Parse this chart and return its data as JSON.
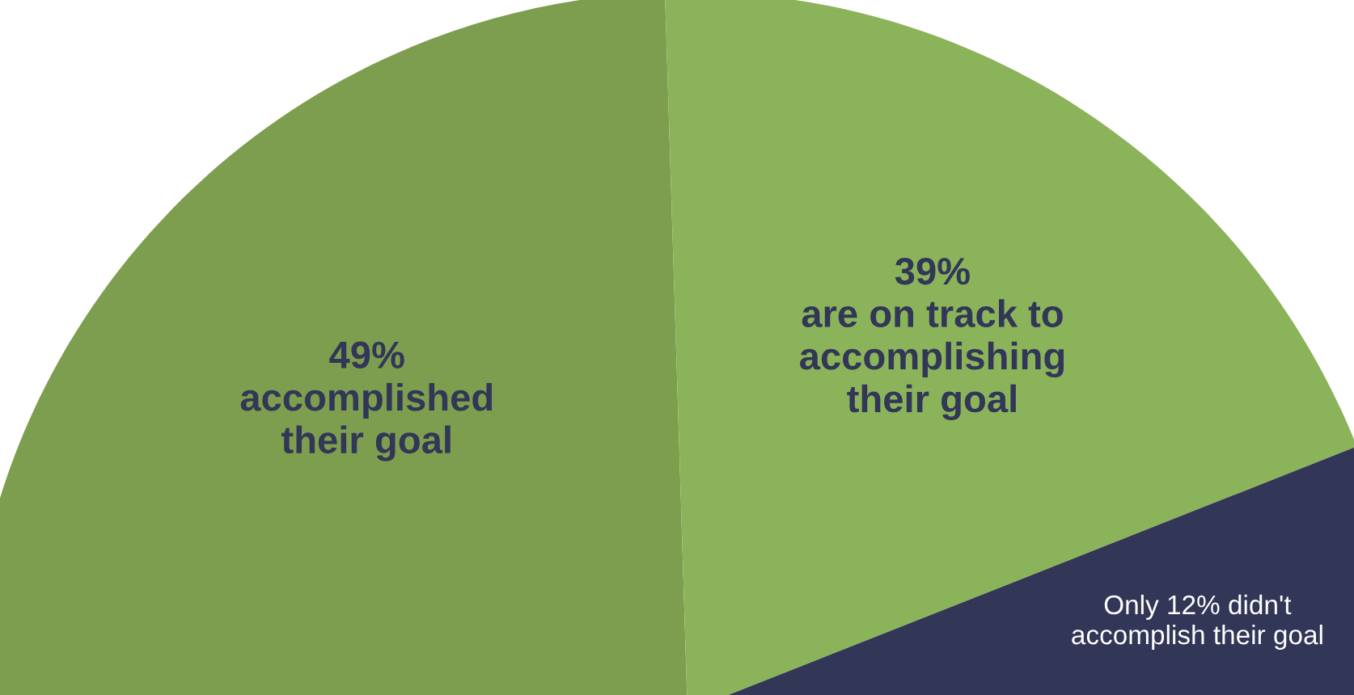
{
  "chart_data": {
    "type": "pie",
    "categories": [
      "49%\naccomplished\ntheir goal",
      "39%\nare on track to\naccomplishing\ntheir goal",
      "Only 12% didn't\naccomplish their goal"
    ],
    "values": [
      49,
      39,
      12
    ],
    "colors": [
      "#7d9e4e",
      "#8bb35a",
      "#323657"
    ]
  }
}
